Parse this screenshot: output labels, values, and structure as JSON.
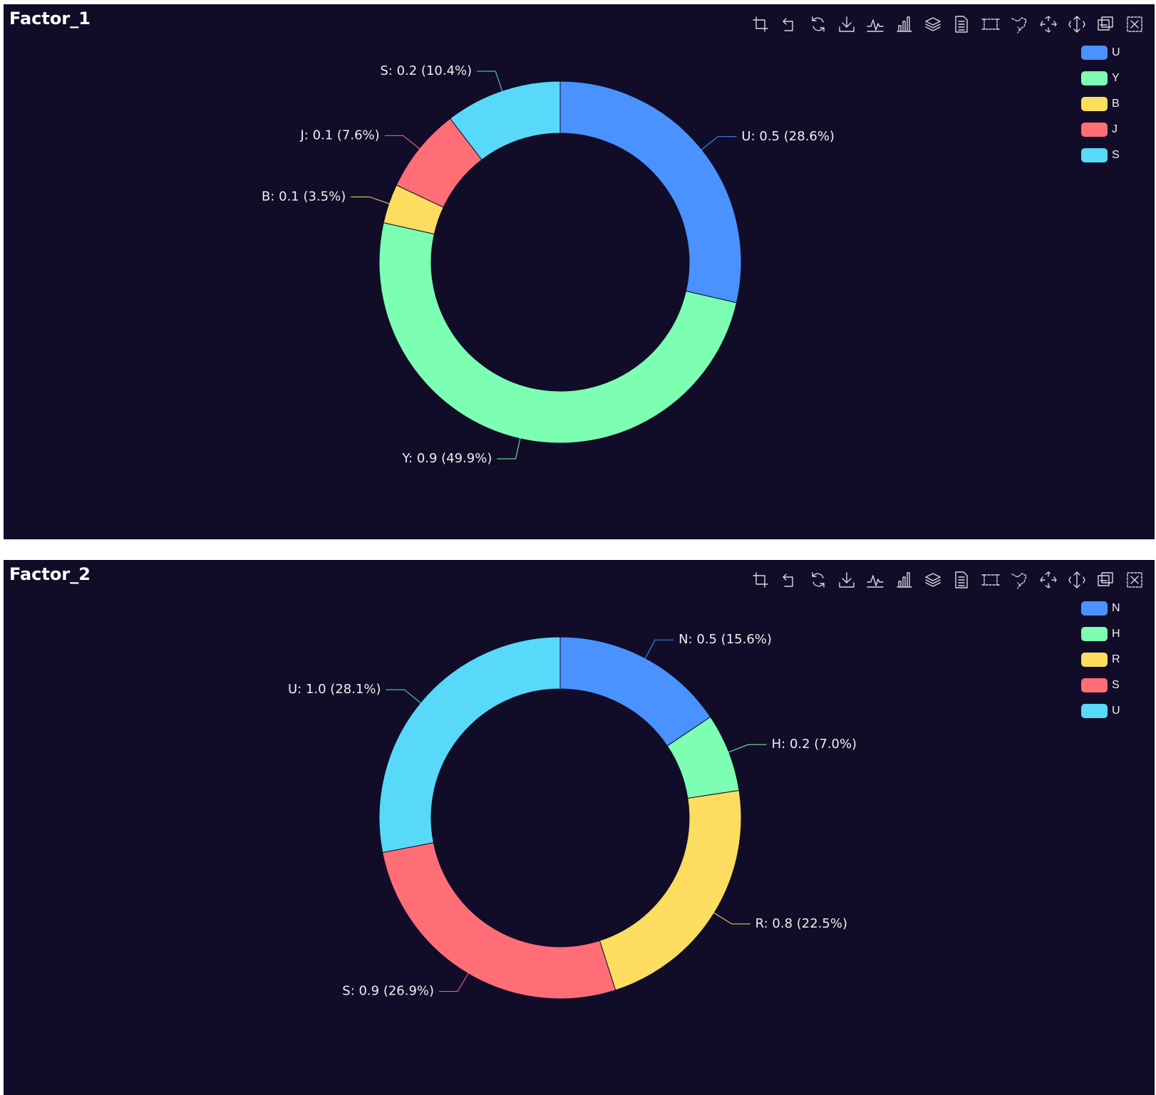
{
  "toolbox": {
    "icons": [
      "crop-icon",
      "undo-icon",
      "refresh-icon",
      "download-icon",
      "line-chart-icon",
      "bar-chart-icon",
      "stack-icon",
      "data-view-icon",
      "rect-select-icon",
      "lasso-select-icon",
      "keep-select-icon",
      "clear-select-icon",
      "zoom-icon",
      "zoom-reset-icon"
    ]
  },
  "chart_data": [
    {
      "type": "pie",
      "variant": "donut",
      "title": "Factor_1",
      "legend_position": "top-right",
      "slices": [
        {
          "name": "U",
          "value": 0.5,
          "percent": 28.6,
          "color": "#4992ff",
          "label": "U: 0.5 (28.6%)"
        },
        {
          "name": "Y",
          "value": 0.9,
          "percent": 49.9,
          "color": "#7cffb2",
          "label": "Y: 0.9 (49.9%)"
        },
        {
          "name": "B",
          "value": 0.1,
          "percent": 3.5,
          "color": "#fddd60",
          "label": "B: 0.1 (3.5%)"
        },
        {
          "name": "J",
          "value": 0.1,
          "percent": 7.6,
          "color": "#ff6e76",
          "label": "J: 0.1 (7.6%)"
        },
        {
          "name": "S",
          "value": 0.2,
          "percent": 10.4,
          "color": "#58d9f9",
          "label": "S: 0.2 (10.4%)"
        }
      ]
    },
    {
      "type": "pie",
      "variant": "donut",
      "title": "Factor_2",
      "legend_position": "top-right",
      "slices": [
        {
          "name": "N",
          "value": 0.5,
          "percent": 15.6,
          "color": "#4992ff",
          "label": "N: 0.5 (15.6%)"
        },
        {
          "name": "H",
          "value": 0.2,
          "percent": 7.0,
          "color": "#7cffb2",
          "label": "H: 0.2 (7.0%)"
        },
        {
          "name": "R",
          "value": 0.8,
          "percent": 22.5,
          "color": "#fddd60",
          "label": "R: 0.8 (22.5%)"
        },
        {
          "name": "S",
          "value": 0.9,
          "percent": 26.9,
          "color": "#ff6e76",
          "label": "S: 0.9 (26.9%)"
        },
        {
          "name": "U",
          "value": 1.0,
          "percent": 28.1,
          "color": "#58d9f9",
          "label": "U: 1.0 (28.1%)"
        }
      ]
    }
  ]
}
